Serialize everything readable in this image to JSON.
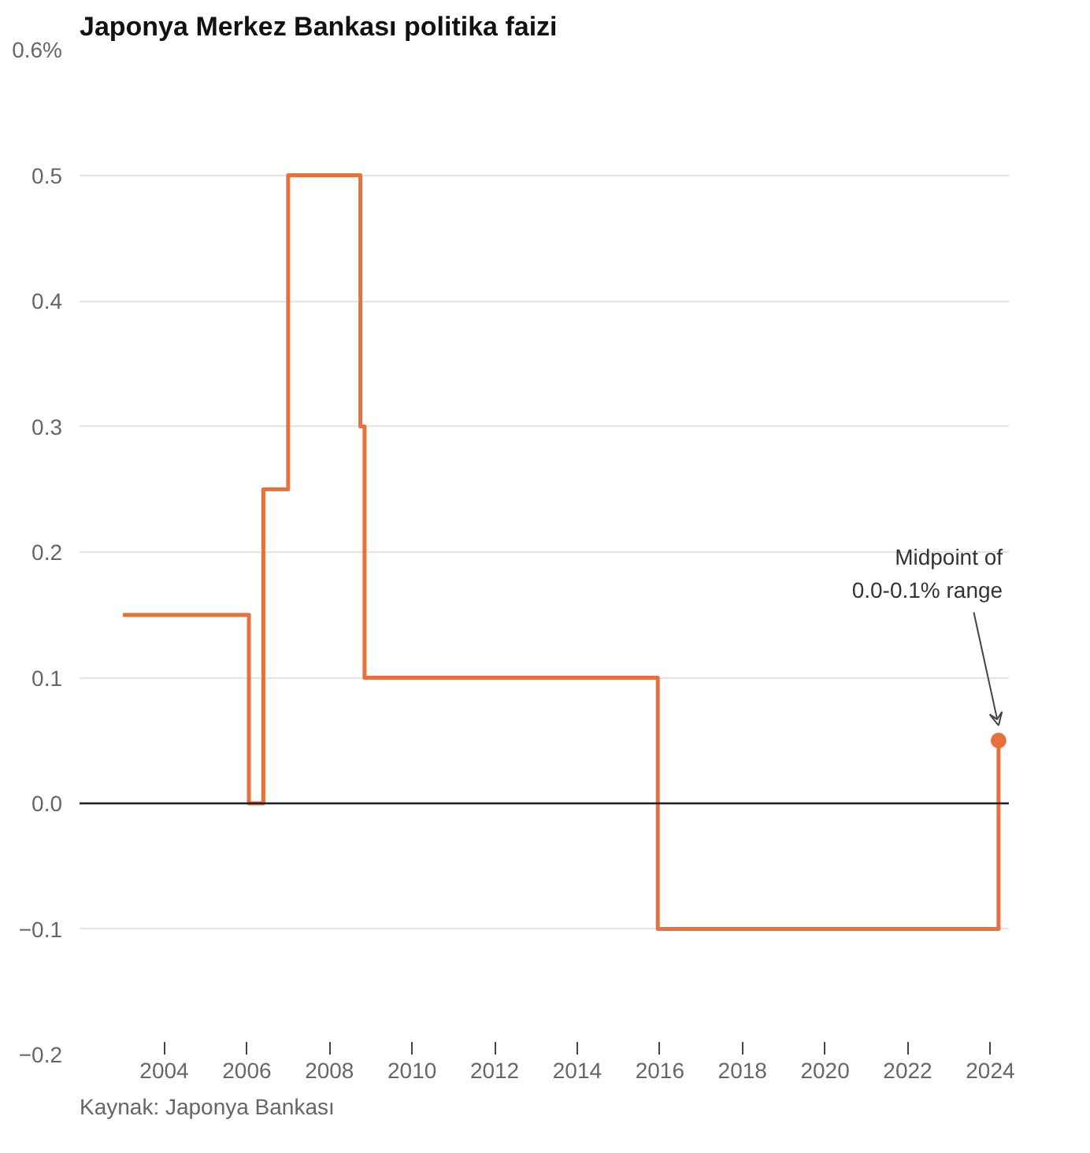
{
  "chart_data": {
    "type": "step",
    "title": "Japonya Merkez Bankası politika faizi",
    "series": [
      {
        "color": "#e8703a",
        "x": [
          2003.0,
          2006.05,
          2006.4,
          2007.0,
          2008.75,
          2008.85,
          2015.95,
          2024.2
        ],
        "values": [
          0.15,
          0,
          0.25,
          0.5,
          0.3,
          0.1,
          -0.1,
          0.05
        ]
      },
      {
        "type": "scatter",
        "color": "#e8703a",
        "x": [
          2024.2
        ],
        "values": [
          0.05
        ]
      }
    ],
    "xlim": [
      2001.95,
      2024.45
    ],
    "xticks": [
      2004,
      2006,
      2008,
      2010,
      2012,
      2014,
      2016,
      2018,
      2020,
      2022,
      2024
    ],
    "ylim": [
      -0.2,
      0.6
    ],
    "yticks": [
      {
        "value": -0.2,
        "label": "−0.2"
      },
      {
        "value": -0.1,
        "label": "−0.1"
      },
      {
        "value": 0,
        "label": "0.0"
      },
      {
        "value": 0.1,
        "label": "0.1"
      },
      {
        "value": 0.2,
        "label": "0.2"
      },
      {
        "value": 0.3,
        "label": "0.3"
      },
      {
        "value": 0.4,
        "label": "0.4"
      },
      {
        "value": 0.5,
        "label": "0.5"
      },
      {
        "value": 0.6,
        "label": "0.6%"
      }
    ],
    "grid": "y",
    "ref_lines": [
      {
        "axis": "y",
        "value": 0,
        "color": "#222222"
      }
    ],
    "annotations": [
      "Midpoint of\n0.0-0.1% range",
      "Kaynak: Japonya Bankası"
    ]
  }
}
